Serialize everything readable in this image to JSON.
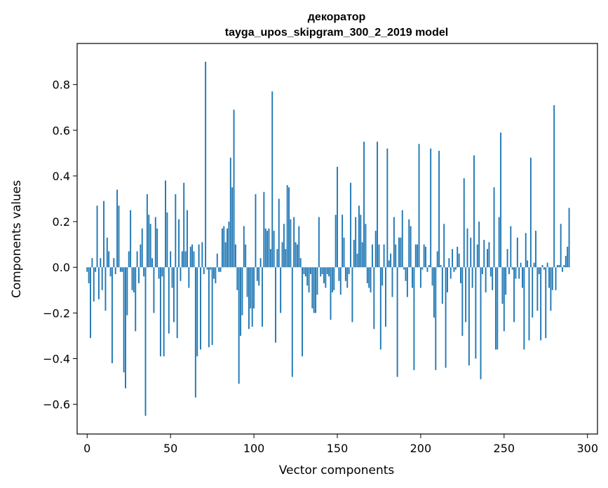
{
  "chart_data": {
    "type": "bar",
    "title": "декоратор",
    "subtitle": "tayga_upos_skipgram_300_2_2019 model",
    "xlabel": "Vector components",
    "ylabel": "Components values",
    "xlim": [
      -6,
      306
    ],
    "ylim": [
      -0.73,
      0.98
    ],
    "xticks": [
      0,
      50,
      100,
      150,
      200,
      250,
      300
    ],
    "xtick_labels": [
      "0",
      "50",
      "100",
      "150",
      "200",
      "250",
      "300"
    ],
    "yticks": [
      -0.6,
      -0.4,
      -0.2,
      0.0,
      0.2,
      0.4,
      0.6,
      0.8
    ],
    "ytick_labels": [
      "−0.6",
      "−0.4",
      "−0.2",
      "0.0",
      "0.2",
      "0.4",
      "0.6",
      "0.8"
    ],
    "bar_color": "#1f77b4",
    "grid": false,
    "values": [
      -0.02,
      -0.07,
      -0.31,
      0.04,
      -0.15,
      -0.02,
      0.27,
      -0.14,
      0.04,
      -0.1,
      0.29,
      -0.19,
      0.13,
      0.07,
      -0.04,
      -0.42,
      0.04,
      -0.03,
      0.34,
      0.27,
      -0.02,
      -0.02,
      -0.46,
      -0.53,
      -0.21,
      0.07,
      0.25,
      -0.1,
      -0.11,
      -0.28,
      0.07,
      -0.07,
      0.1,
      0.17,
      -0.04,
      -0.65,
      0.32,
      0.23,
      0.19,
      0.04,
      -0.2,
      0.22,
      0.17,
      -0.05,
      -0.39,
      -0.04,
      -0.39,
      0.38,
      0.24,
      -0.29,
      0.07,
      -0.09,
      -0.24,
      0.32,
      -0.31,
      0.21,
      -0.06,
      0.07,
      0.37,
      0.07,
      0.25,
      -0.09,
      0.09,
      0.1,
      0.07,
      -0.57,
      -0.39,
      0.1,
      -0.36,
      0.11,
      -0.03,
      0.9,
      -0.01,
      -0.35,
      -0.01,
      -0.34,
      -0.05,
      -0.07,
      0.06,
      -0.02,
      -0.02,
      0.17,
      0.18,
      0.11,
      0.17,
      0.2,
      0.48,
      0.35,
      0.69,
      0.1,
      -0.1,
      -0.51,
      -0.3,
      -0.21,
      0.18,
      0.1,
      -0.13,
      -0.27,
      -0.18,
      -0.26,
      -0.18,
      0.32,
      -0.06,
      -0.08,
      0.04,
      -0.26,
      0.33,
      0.17,
      0.16,
      0.17,
      0.08,
      0.77,
      0.16,
      -0.33,
      0.08,
      0.3,
      -0.2,
      0.11,
      0.19,
      0.08,
      0.36,
      0.35,
      0.21,
      -0.48,
      0.22,
      0.11,
      0.1,
      0.18,
      0.04,
      -0.39,
      -0.03,
      -0.04,
      -0.08,
      -0.11,
      -0.03,
      -0.18,
      -0.2,
      -0.2,
      -0.12,
      0.22,
      -0.04,
      -0.03,
      -0.07,
      -0.09,
      -0.03,
      -0.04,
      -0.23,
      -0.11,
      -0.1,
      0.23,
      0.44,
      -0.06,
      -0.12,
      0.23,
      0.13,
      -0.06,
      -0.09,
      -0.03,
      0.37,
      -0.24,
      0.12,
      0.22,
      0.06,
      0.27,
      0.23,
      0.11,
      0.55,
      0.19,
      -0.07,
      -0.09,
      -0.11,
      0.1,
      -0.27,
      0.16,
      0.55,
      0.1,
      -0.36,
      -0.08,
      0.1,
      -0.26,
      0.52,
      0.03,
      0.06,
      -0.13,
      0.22,
      0.1,
      -0.48,
      0.13,
      0.13,
      0.25,
      -0.01,
      -0.06,
      -0.13,
      0.21,
      0.18,
      -0.09,
      -0.45,
      0.1,
      0.1,
      0.54,
      -0.09,
      -0.01,
      0.1,
      0.09,
      -0.02,
      0.01,
      0.52,
      -0.08,
      -0.22,
      -0.45,
      0.07,
      0.51,
      0.01,
      -0.16,
      0.19,
      -0.44,
      -0.11,
      0.04,
      -0.05,
      0.08,
      -0.02,
      -0.01,
      0.09,
      0.06,
      -0.07,
      -0.3,
      0.39,
      -0.24,
      0.17,
      -0.43,
      0.13,
      -0.09,
      0.49,
      -0.4,
      0.1,
      0.2,
      -0.49,
      -0.03,
      0.12,
      -0.11,
      0.08,
      0.11,
      -0.04,
      -0.1,
      0.35,
      -0.36,
      -0.36,
      0.22,
      0.59,
      -0.16,
      -0.28,
      -0.12,
      0.08,
      -0.03,
      0.18,
      -0.01,
      -0.24,
      -0.05,
      0.13,
      -0.05,
      0.02,
      -0.09,
      -0.36,
      0.15,
      0.03,
      -0.32,
      0.48,
      -0.22,
      0.02,
      0.16,
      -0.19,
      -0.03,
      -0.32,
      0.01,
      -0.01,
      -0.31,
      0.02,
      -0.09,
      -0.19,
      -0.1,
      0.71,
      -0.1,
      0.01,
      0.01,
      0.19,
      -0.02,
      0.01,
      0.05,
      0.09,
      0.26
    ]
  }
}
